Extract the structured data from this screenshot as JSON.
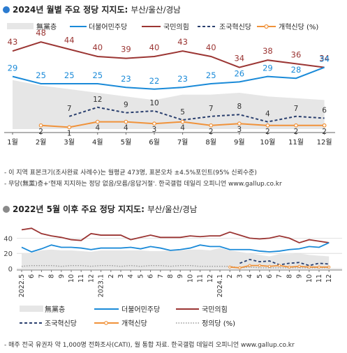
{
  "top": {
    "title_main": "2024년 월별 주요 정당 지지도:",
    "title_sub": "부산/울산/경남",
    "title_dot_color": "#2b7bd0",
    "notes": [
      "- 이 지역 표본크기(조사완료 사례수)는 월평균 473명, 표본오차 ±4.5%포인트(95% 신뢰수준)",
      "- 무당(無黨)층+'현재 지지하는 정당 없음/모름/응답거절'. 한국갤럽 데일리 오피니언 www.gallup.co.kr"
    ]
  },
  "bottom": {
    "title_main": "2022년 5월 이후 주요 정당 지지도:",
    "title_sub": "부산/울산/경남",
    "title_dot_color": "#8a8a8a",
    "note": "- 매주 전국 유권자 약 1,000명 전화조사(CATI), 월 통합 자료. 한국갤럽 데일리 오피니언 www.gallup.co.kr"
  },
  "colors": {
    "independent": "#e6e6e6",
    "democratic": "#1a8ad8",
    "ppp": "#9b3533",
    "rebuild": "#2a3f6e",
    "reform": "#f0923a",
    "justice": "#9a9a9a"
  },
  "chart_data": [
    {
      "type": "line",
      "categories": [
        "1월",
        "2월",
        "3월",
        "4월",
        "5월",
        "6월",
        "7월",
        "8월",
        "9월",
        "10월",
        "11월",
        "12월"
      ],
      "legend": [
        "無黨층",
        "더불어민주당",
        "국민의힘",
        "조국혁신당",
        "개혁신당 (%)"
      ],
      "series": [
        {
          "name": "無黨층",
          "type": "area",
          "values": [
            27,
            24,
            22,
            20,
            18,
            16,
            19,
            19,
            20,
            18,
            17,
            16
          ]
        },
        {
          "name": "더불어민주당",
          "values": [
            29,
            25,
            25,
            25,
            23,
            22,
            23,
            25,
            26,
            29,
            28,
            34
          ]
        },
        {
          "name": "국민의힘",
          "values": [
            43,
            48,
            44,
            40,
            39,
            40,
            43,
            40,
            34,
            38,
            36,
            34
          ]
        },
        {
          "name": "조국혁신당",
          "values": [
            null,
            null,
            7,
            12,
            9,
            10,
            5,
            7,
            8,
            4,
            7,
            6
          ]
        },
        {
          "name": "개혁신당",
          "values": [
            null,
            2,
            1,
            4,
            4,
            3,
            4,
            2,
            3,
            2,
            2,
            2
          ]
        }
      ]
    },
    {
      "type": "line",
      "year_labels": [
        "2022.5",
        "2023.1",
        "2024.1"
      ],
      "tick_labels": [
        "2022.5",
        "6",
        "7",
        "8",
        "9",
        "10",
        "11",
        "12",
        "2023.1",
        "2",
        "3",
        "4",
        "5",
        "6",
        "7",
        "8",
        "9",
        "10",
        "11",
        "12",
        "2024.1",
        "2",
        "3",
        "4",
        "5",
        "6",
        "7",
        "8",
        "9",
        "10",
        "11",
        "12"
      ],
      "yticks": [
        0,
        20,
        40
      ],
      "ylim": [
        0,
        55
      ],
      "legend": [
        "無黨층",
        "더불어민주당",
        "국민의힘",
        "조국혁신당",
        "개혁신당",
        "정의당 (%)"
      ],
      "series": [
        {
          "name": "無黨층",
          "type": "area",
          "values": [
            20,
            21,
            24,
            25,
            24,
            24,
            23,
            22,
            24,
            24,
            24,
            24,
            24,
            23,
            23,
            24,
            24,
            25,
            25,
            24,
            27,
            24,
            22,
            20,
            18,
            16,
            19,
            19,
            20,
            18,
            17,
            16
          ]
        },
        {
          "name": "더불어민주당",
          "values": [
            28,
            22,
            26,
            31,
            28,
            28,
            27,
            25,
            27,
            27,
            27,
            28,
            26,
            29,
            27,
            24,
            25,
            27,
            31,
            29,
            29,
            25,
            25,
            25,
            23,
            22,
            23,
            25,
            26,
            29,
            28,
            34
          ]
        },
        {
          "name": "국민의힘",
          "values": [
            51,
            53,
            46,
            43,
            41,
            38,
            37,
            46,
            44,
            44,
            44,
            38,
            41,
            44,
            41,
            41,
            41,
            43,
            42,
            43,
            43,
            48,
            44,
            40,
            39,
            40,
            43,
            40,
            34,
            38,
            36,
            34
          ]
        },
        {
          "name": "조국혁신당",
          "values": [
            null,
            null,
            null,
            null,
            null,
            null,
            null,
            null,
            null,
            null,
            null,
            null,
            null,
            null,
            null,
            null,
            null,
            null,
            null,
            null,
            null,
            null,
            7,
            12,
            9,
            10,
            5,
            7,
            8,
            4,
            7,
            6
          ]
        },
        {
          "name": "개혁신당",
          "values": [
            null,
            null,
            null,
            null,
            null,
            null,
            null,
            null,
            null,
            null,
            null,
            null,
            null,
            null,
            null,
            null,
            null,
            null,
            null,
            null,
            null,
            2,
            1,
            4,
            4,
            3,
            4,
            2,
            3,
            2,
            2,
            2
          ]
        },
        {
          "name": "정의당",
          "values": [
            3,
            4,
            4,
            4,
            3,
            4,
            4,
            3,
            4,
            4,
            3,
            4,
            3,
            4,
            4,
            3,
            4,
            4,
            3,
            3,
            3,
            3,
            1,
            2,
            1,
            1,
            1,
            1,
            1,
            1,
            1,
            1
          ]
        }
      ]
    }
  ]
}
